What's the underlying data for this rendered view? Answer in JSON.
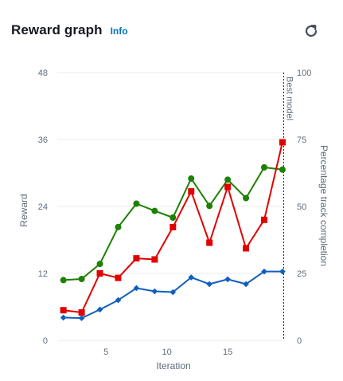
{
  "header": {
    "title": "Reward graph",
    "info_label": "Info"
  },
  "icons": {
    "refresh": "refresh-icon"
  },
  "colors": {
    "green": "#1d8102",
    "red": "#e00000",
    "blue": "#0f5fbe",
    "grid": "#e9ebed",
    "axis_text": "#5f6b7a"
  },
  "chart_data": {
    "type": "line",
    "xlabel": "Iteration",
    "ylabel": "Reward",
    "y2label": "Percentage track completion",
    "xlim": [
      1,
      19.7
    ],
    "xticks": [
      5,
      10,
      15
    ],
    "ylim": [
      0,
      48
    ],
    "yticks": [
      0,
      12,
      24,
      36,
      48
    ],
    "y2lim": [
      0,
      100
    ],
    "y2ticks": [
      0,
      25,
      50,
      75,
      100
    ],
    "grid": true,
    "annotation": {
      "label": "Best model",
      "x": 19.6
    },
    "series": [
      {
        "color_key": "green",
        "marker": "circle",
        "axis": "left",
        "x": [
          1.5,
          3,
          4.5,
          6,
          7.5,
          9,
          10.5,
          12,
          13.5,
          15,
          16.5,
          18,
          19.5
        ],
        "values": [
          10.8,
          11.0,
          13.7,
          20.3,
          24.5,
          23.2,
          22.0,
          29.0,
          24.1,
          28.8,
          25.5,
          31.0,
          30.6
        ]
      },
      {
        "color_key": "red",
        "marker": "square",
        "axis": "left",
        "x": [
          1.5,
          3,
          4.5,
          6,
          7.5,
          9,
          10.5,
          12,
          13.5,
          15,
          16.5,
          18,
          19.5
        ],
        "values": [
          5.4,
          5.0,
          12.0,
          11.2,
          14.7,
          14.5,
          20.3,
          26.7,
          17.5,
          27.5,
          16.5,
          21.6,
          35.5
        ]
      },
      {
        "color_key": "blue",
        "marker": "diamond",
        "axis": "right",
        "x": [
          1.5,
          3,
          4.5,
          6,
          7.5,
          9,
          10.5,
          12,
          13.5,
          15,
          16.5,
          18,
          19.5
        ],
        "values": [
          8.5,
          8.3,
          11.5,
          15.0,
          19.5,
          18.3,
          18.0,
          23.5,
          21.0,
          22.8,
          21.0,
          25.7,
          25.7
        ]
      }
    ]
  }
}
